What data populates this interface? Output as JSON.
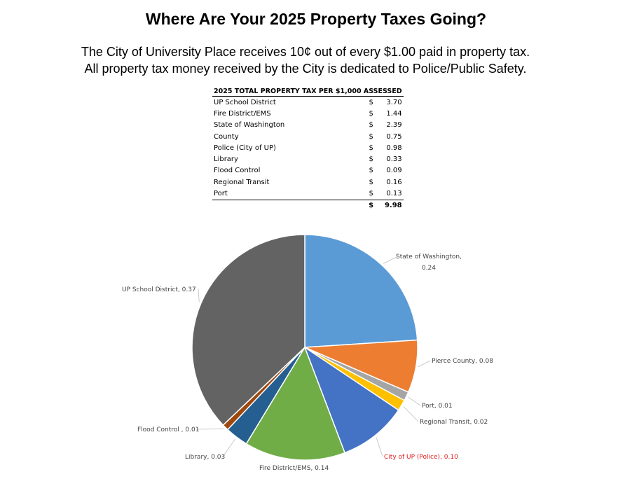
{
  "title": "Where Are Your 2025 Property Taxes Going?",
  "subtitle_lines": [
    "The City of University Place receives 10¢ out of every $1.00 paid in property tax.",
    "All property tax money received by the City is dedicated to Police/Public Safety."
  ],
  "table": {
    "header": "2025 TOTAL PROPERTY TAX PER $1,000 ASSESSED",
    "currency": "$",
    "rows": [
      {
        "label": "UP School District",
        "value": "3.70"
      },
      {
        "label": "Fire District/EMS",
        "value": "1.44"
      },
      {
        "label": "State of Washington",
        "value": "2.39"
      },
      {
        "label": "County",
        "value": "0.75"
      },
      {
        "label": "Police (City of UP)",
        "value": "0.98"
      },
      {
        "label": "Library",
        "value": "0.33"
      },
      {
        "label": "Flood Control",
        "value": "0.09"
      },
      {
        "label": "Regional Transit",
        "value": "0.16"
      },
      {
        "label": "Port",
        "value": "0.13"
      }
    ],
    "total": "9.98"
  },
  "chart_data": {
    "type": "pie",
    "start": "top, clockwise",
    "slices": [
      {
        "name": "State of Washington",
        "value": 0.24,
        "label": "State of Washington, 0.24",
        "color": "#5b9bd5"
      },
      {
        "name": "Pierce County",
        "value": 0.08,
        "label": "Pierce County, 0.08",
        "color": "#ed7d31"
      },
      {
        "name": "Port",
        "value": 0.01,
        "label": "Port, 0.01",
        "color": "#a5a5a5"
      },
      {
        "name": "Regional Transit",
        "value": 0.02,
        "label": "Regional Transit, 0.02",
        "color": "#ffc000"
      },
      {
        "name": "City of UP (Police)",
        "value": 0.1,
        "label": "City of UP (Police), 0.10",
        "color": "#4472c4",
        "label_color": "#e02020"
      },
      {
        "name": "Fire District/EMS",
        "value": 0.14,
        "label": "Fire District/EMS, 0.14",
        "color": "#70ad47"
      },
      {
        "name": "Library",
        "value": 0.03,
        "label": "Library, 0.03",
        "color": "#255e91"
      },
      {
        "name": "Flood Control ",
        "value": 0.01,
        "label": "Flood Control , 0.01",
        "color": "#9e480e"
      },
      {
        "name": "UP School District",
        "value": 0.37,
        "label": "UP School District, 0.37",
        "color": "#636363"
      }
    ],
    "slice_amounts": [
      2.39,
      0.75,
      0.13,
      0.16,
      0.98,
      1.44,
      0.33,
      0.09,
      3.7
    ]
  }
}
